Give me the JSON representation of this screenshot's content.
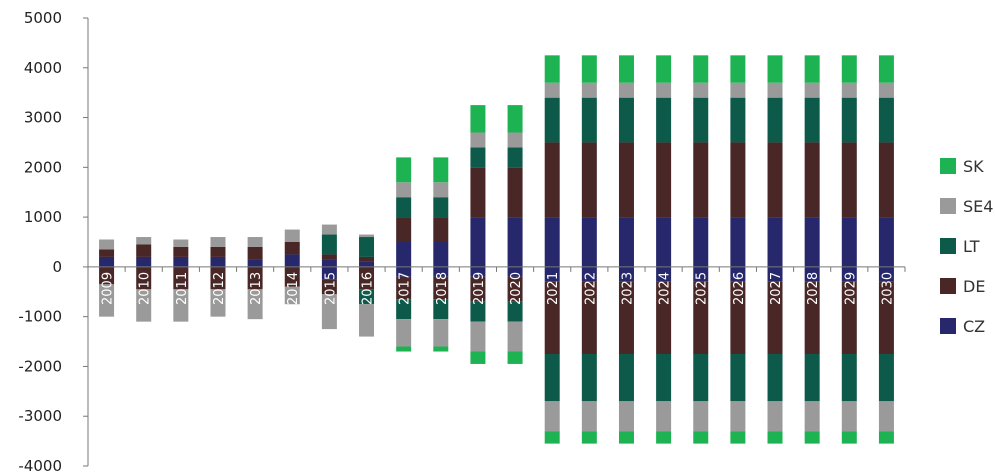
{
  "chart_data": {
    "type": "bar",
    "stacked": true,
    "diverging": true,
    "categories": [
      "2009",
      "2010",
      "2011",
      "2012",
      "2013",
      "2014",
      "2015",
      "2016",
      "2017",
      "2018",
      "2019",
      "2020",
      "2021",
      "2022",
      "2023",
      "2024",
      "2025",
      "2026",
      "2027",
      "2028",
      "2029",
      "2030"
    ],
    "ylim": [
      -4000,
      5000
    ],
    "yticks": [
      -4000,
      -3000,
      -2000,
      -1000,
      0,
      1000,
      2000,
      3000,
      4000,
      5000
    ],
    "legend_position": "right",
    "grid": false,
    "series": [
      {
        "name": "CZ",
        "color": "#26286b",
        "pos": [
          200,
          200,
          200,
          200,
          150,
          250,
          150,
          100,
          500,
          500,
          1000,
          1000,
          1000,
          1000,
          1000,
          1000,
          1000,
          1000,
          1000,
          1000,
          1000,
          1000
        ],
        "neg": [
          0,
          0,
          0,
          0,
          0,
          0,
          -250,
          0,
          -200,
          -200,
          -200,
          -200,
          -300,
          -300,
          -300,
          -300,
          -300,
          -300,
          -300,
          -300,
          -300,
          -300
        ]
      },
      {
        "name": "DE",
        "color": "#4a2727",
        "pos": [
          150,
          250,
          200,
          200,
          250,
          250,
          100,
          100,
          500,
          500,
          1000,
          1000,
          1500,
          1500,
          1500,
          1500,
          1500,
          1500,
          1500,
          1500,
          1500,
          1500
        ],
        "neg": [
          -350,
          -450,
          -450,
          -450,
          -450,
          -400,
          -300,
          -450,
          -450,
          -450,
          -500,
          -500,
          -1450,
          -1450,
          -1450,
          -1450,
          -1450,
          -1450,
          -1450,
          -1450,
          -1450,
          -1450
        ]
      },
      {
        "name": "LT",
        "color": "#0e5a4a",
        "pos": [
          0,
          0,
          0,
          0,
          0,
          0,
          400,
          400,
          400,
          400,
          400,
          400,
          900,
          900,
          900,
          900,
          900,
          900,
          900,
          900,
          900,
          900
        ],
        "neg": [
          0,
          0,
          0,
          0,
          0,
          0,
          0,
          -300,
          -400,
          -400,
          -400,
          -400,
          -950,
          -950,
          -950,
          -950,
          -950,
          -950,
          -950,
          -950,
          -950,
          -950
        ]
      },
      {
        "name": "SE4",
        "color": "#9a9a9a",
        "pos": [
          200,
          150,
          150,
          200,
          200,
          250,
          200,
          50,
          300,
          300,
          300,
          300,
          300,
          300,
          300,
          300,
          300,
          300,
          300,
          300,
          300,
          300
        ],
        "neg": [
          -650,
          -650,
          -650,
          -550,
          -600,
          -350,
          -700,
          -650,
          -550,
          -550,
          -600,
          -600,
          -600,
          -600,
          -600,
          -600,
          -600,
          -600,
          -600,
          -600,
          -600,
          -600
        ]
      },
      {
        "name": "SK",
        "color": "#1db352",
        "pos": [
          0,
          0,
          0,
          0,
          0,
          0,
          0,
          0,
          500,
          500,
          550,
          550,
          550,
          550,
          550,
          550,
          550,
          550,
          550,
          550,
          550,
          550
        ],
        "neg": [
          0,
          0,
          0,
          0,
          0,
          0,
          0,
          0,
          -100,
          -100,
          -250,
          -250,
          -250,
          -250,
          -250,
          -250,
          -250,
          -250,
          -250,
          -250,
          -250,
          -250
        ]
      }
    ]
  }
}
